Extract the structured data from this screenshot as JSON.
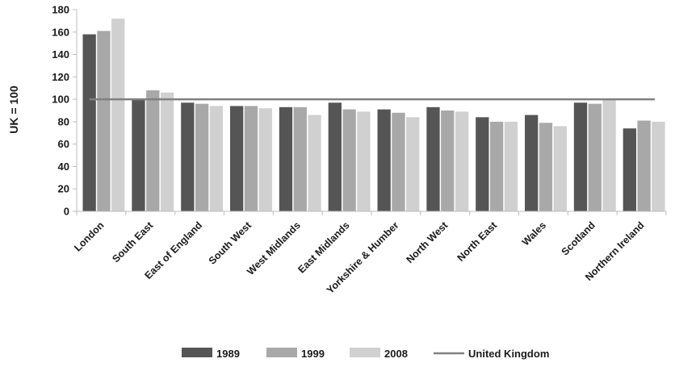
{
  "chart_data": {
    "type": "bar",
    "title": "",
    "xlabel": "",
    "ylabel": "UK = 100",
    "ylim": [
      0,
      180
    ],
    "yticks": [
      0,
      20,
      40,
      60,
      80,
      100,
      120,
      140,
      160,
      180
    ],
    "grid": false,
    "legend_position": "bottom",
    "categories": [
      "London",
      "South East",
      "East of England",
      "South West",
      "West Midlands",
      "East Midlands",
      "Yorkshire & Humber",
      "North West",
      "North East",
      "Wales",
      "Scotland",
      "Northern Ireland"
    ],
    "series": [
      {
        "name": "1989",
        "color": "#555555",
        "values": [
          158,
          100,
          97,
          94,
          93,
          97,
          91,
          93,
          84,
          86,
          97,
          74
        ]
      },
      {
        "name": "1999",
        "color": "#a8a8a8",
        "values": [
          161,
          108,
          96,
          94,
          93,
          91,
          88,
          90,
          80,
          79,
          96,
          81
        ]
      },
      {
        "name": "2008",
        "color": "#d0d0d0",
        "values": [
          172,
          106,
          94,
          92,
          86,
          89,
          84,
          89,
          80,
          76,
          100,
          80
        ]
      }
    ],
    "reference_line": {
      "name": "United Kingdom",
      "value": 100,
      "color": "#808080"
    }
  }
}
